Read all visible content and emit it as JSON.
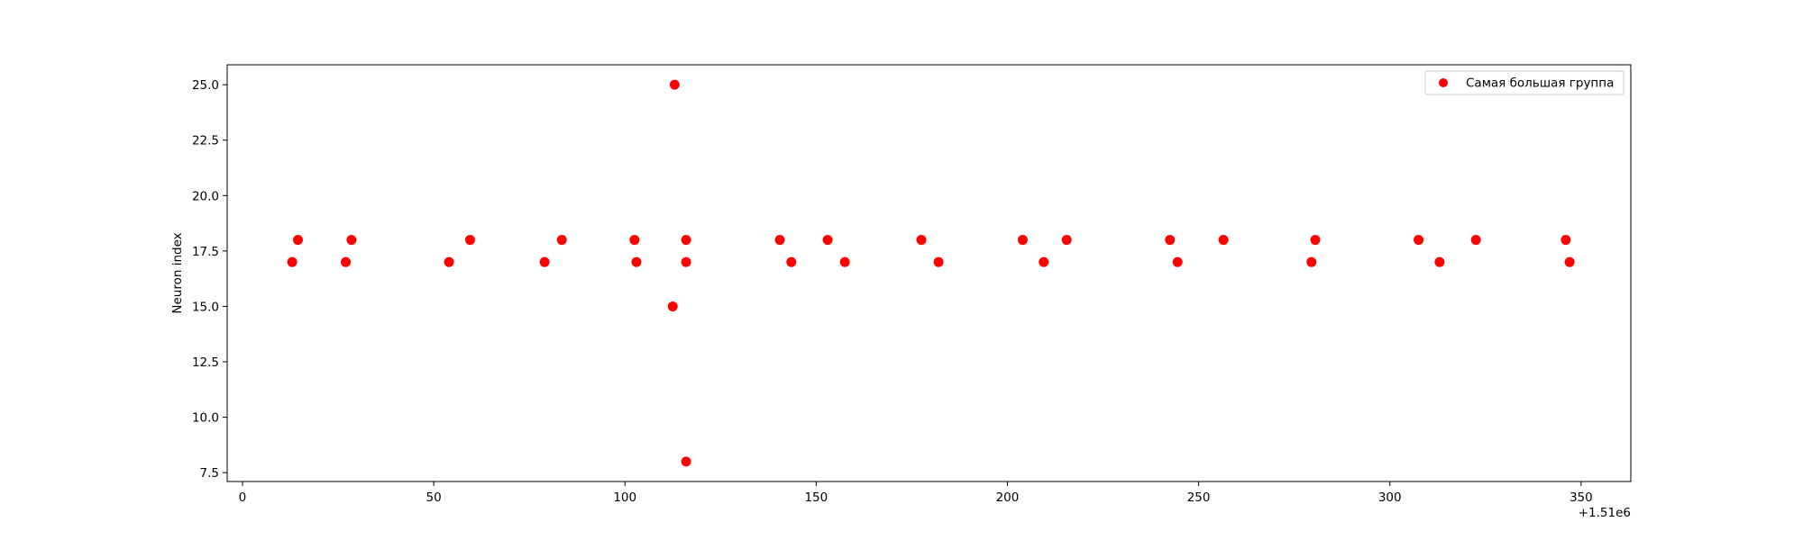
{
  "chart_data": {
    "type": "scatter",
    "title": "",
    "xlabel": "",
    "ylabel": "Neuron index",
    "x_offset_label": "+1.51e6",
    "xlim": [
      -4,
      363
    ],
    "ylim": [
      7.1,
      25.9
    ],
    "x_ticks": [
      0,
      50,
      100,
      150,
      200,
      250,
      300,
      350
    ],
    "y_ticks": [
      7.5,
      10.0,
      12.5,
      15.0,
      17.5,
      20.0,
      22.5,
      25.0
    ],
    "grid": false,
    "legend_position": "top-right",
    "series": [
      {
        "name": "Самая большая группа",
        "color": "#ff0000",
        "marker": "circle",
        "points": [
          {
            "x": 13,
            "y": 17
          },
          {
            "x": 14.5,
            "y": 18
          },
          {
            "x": 27,
            "y": 17
          },
          {
            "x": 28.5,
            "y": 18
          },
          {
            "x": 54,
            "y": 17
          },
          {
            "x": 59.5,
            "y": 18
          },
          {
            "x": 79,
            "y": 17
          },
          {
            "x": 83.5,
            "y": 18
          },
          {
            "x": 102.5,
            "y": 18
          },
          {
            "x": 103,
            "y": 17
          },
          {
            "x": 113,
            "y": 25
          },
          {
            "x": 112.5,
            "y": 15
          },
          {
            "x": 116,
            "y": 18
          },
          {
            "x": 116,
            "y": 17
          },
          {
            "x": 116,
            "y": 8
          },
          {
            "x": 140.5,
            "y": 18
          },
          {
            "x": 143.5,
            "y": 17
          },
          {
            "x": 153,
            "y": 18
          },
          {
            "x": 157.5,
            "y": 17
          },
          {
            "x": 177.5,
            "y": 18
          },
          {
            "x": 182,
            "y": 17
          },
          {
            "x": 204,
            "y": 18
          },
          {
            "x": 209.5,
            "y": 17
          },
          {
            "x": 215.5,
            "y": 18
          },
          {
            "x": 242.5,
            "y": 18
          },
          {
            "x": 244.5,
            "y": 17
          },
          {
            "x": 256.5,
            "y": 18
          },
          {
            "x": 279.5,
            "y": 17
          },
          {
            "x": 280.5,
            "y": 18
          },
          {
            "x": 307.5,
            "y": 18
          },
          {
            "x": 313,
            "y": 17
          },
          {
            "x": 322.5,
            "y": 18
          },
          {
            "x": 346,
            "y": 18
          },
          {
            "x": 347,
            "y": 17
          }
        ]
      }
    ]
  }
}
